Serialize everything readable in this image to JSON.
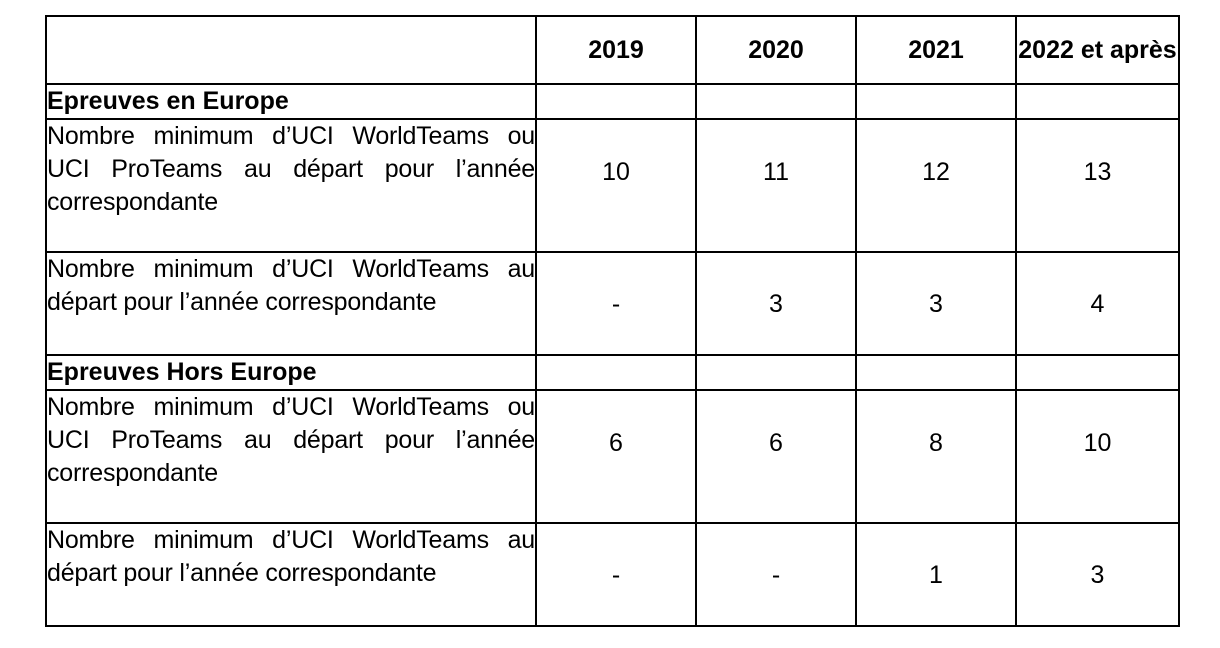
{
  "table": {
    "headers": [
      "",
      "2019",
      "2020",
      "2021",
      "2022 et après"
    ],
    "sections": [
      {
        "title": "Epreuves en Europe",
        "rows": [
          {
            "label": "Nombre minimum d’UCI WorldTeams ou UCI ProTeams au départ pour l’année correspondante",
            "values": [
              "10",
              "11",
              "12",
              "13"
            ]
          },
          {
            "label": "Nombre minimum d’UCI WorldTeams au départ pour l’année correspondante",
            "values": [
              "-",
              "3",
              "3",
              "4"
            ]
          }
        ]
      },
      {
        "title": "Epreuves Hors Europe",
        "rows": [
          {
            "label": "Nombre minimum d’UCI WorldTeams ou UCI ProTeams au départ pour l’année correspondante",
            "values": [
              "6",
              "6",
              "8",
              "10"
            ]
          },
          {
            "label": "Nombre minimum d’UCI WorldTeams au départ pour l’année correspondante",
            "values": [
              "-",
              "-",
              "1",
              "3"
            ]
          }
        ]
      }
    ]
  }
}
